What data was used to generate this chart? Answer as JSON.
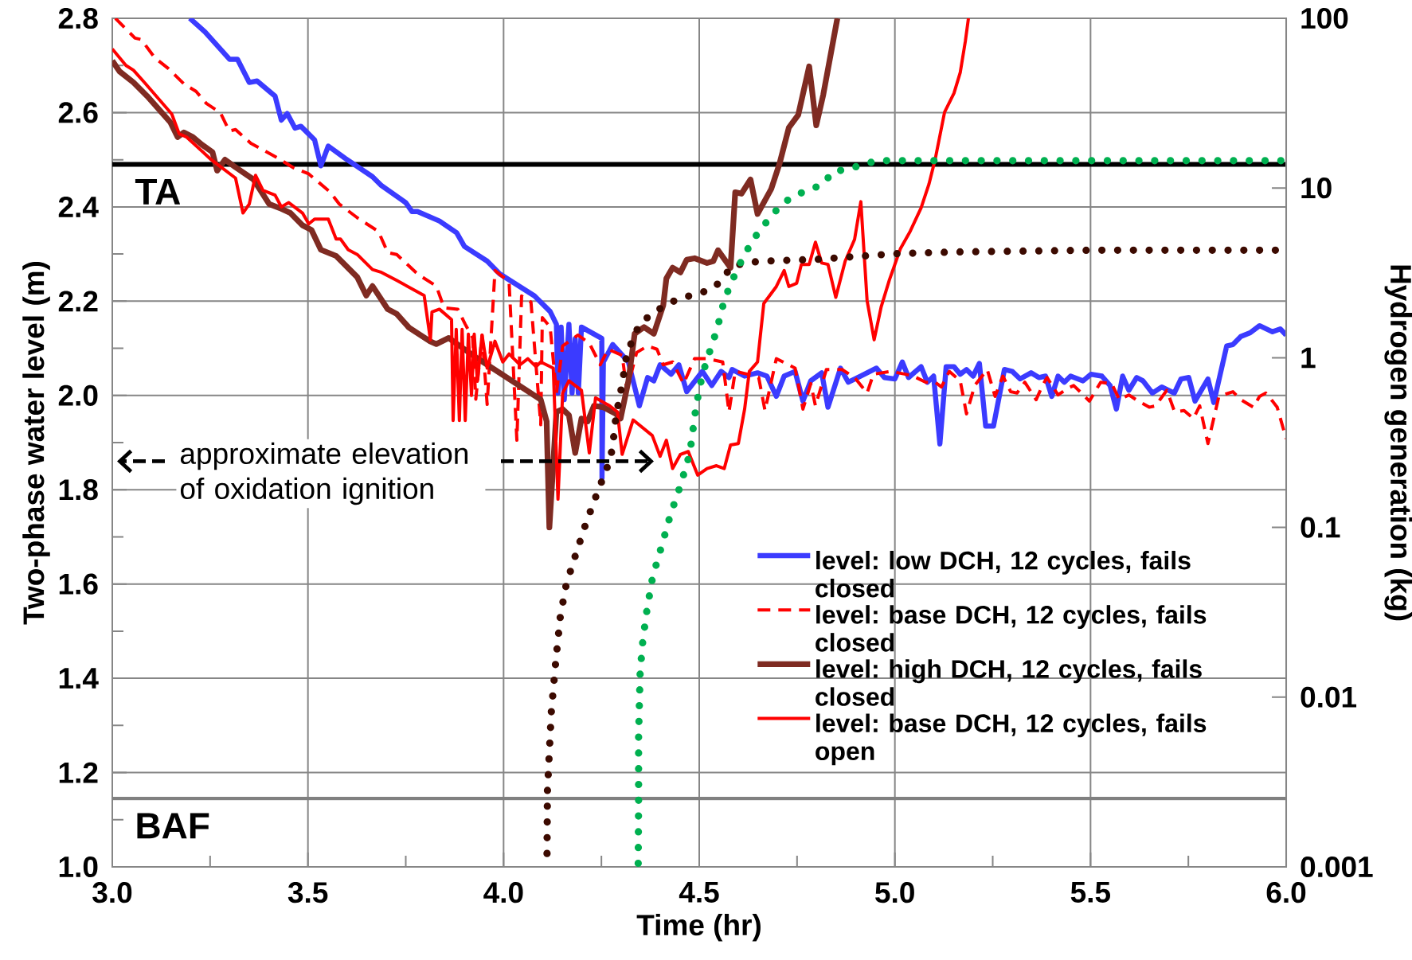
{
  "chart_data": {
    "type": "line",
    "xlabel": "Time (hr)",
    "ylabel": "Two-phase water level (m)",
    "y2label": "Hydrogen generation (kg)",
    "xlim": [
      3,
      6
    ],
    "xticks": [
      {
        "value": 3,
        "label": "3.0"
      },
      {
        "value": 3.5,
        "label": "3.5"
      },
      {
        "value": 4,
        "label": "4.0"
      },
      {
        "value": 4.5,
        "label": "4.5"
      },
      {
        "value": 5,
        "label": "5.0"
      },
      {
        "value": 5.5,
        "label": "5.5"
      },
      {
        "value": 6,
        "label": "6.0"
      }
    ],
    "ylim": [
      1,
      2.8
    ],
    "yticks": [
      {
        "value": 1,
        "label": "1.0"
      },
      {
        "value": 1.2,
        "label": "1.2"
      },
      {
        "value": 1.4,
        "label": "1.4"
      },
      {
        "value": 1.6,
        "label": "1.6"
      },
      {
        "value": 1.8,
        "label": "1.8"
      },
      {
        "value": 2,
        "label": "2.0"
      },
      {
        "value": 2.2,
        "label": "2.2"
      },
      {
        "value": 2.4,
        "label": "2.4"
      },
      {
        "value": 2.6,
        "label": "2.6"
      },
      {
        "value": 2.8,
        "label": "2.8"
      }
    ],
    "y2lim": [
      0.001,
      100
    ],
    "y2ticks": [
      0.001,
      0.01,
      0.1,
      1,
      10,
      100
    ],
    "log": "y2",
    "grid": true,
    "legend": "bottom right",
    "ref_lines": [
      {
        "axis": "y",
        "value": 2.49,
        "label": "TA",
        "color": "#000000"
      },
      {
        "axis": "y",
        "value": 1.145,
        "label": "BAF",
        "color": "#808080"
      }
    ],
    "annotations": [
      "approximate elevation of oxidation ignition"
    ],
    "series": [
      {
        "name": "level: low DCH, 12 cycles, fails closed",
        "color": "#3b3bff",
        "line_style": "solid",
        "x": [
          3.198,
          3.237,
          3.3,
          3.32,
          3.35,
          3.37,
          3.416,
          3.432,
          3.447,
          3.467,
          3.482,
          3.517,
          3.533,
          3.552,
          3.595,
          3.665,
          3.688,
          3.75,
          3.766,
          3.78,
          3.836,
          3.88,
          3.9,
          3.958,
          3.99,
          4.079,
          4.119,
          4.135,
          4.139,
          4.147,
          4.155,
          4.167,
          4.175,
          4.183,
          4.191,
          4.199,
          4.251,
          4.2515,
          4.255,
          4.279,
          4.319,
          4.347,
          4.368,
          4.384,
          4.4,
          4.428,
          4.448,
          4.468,
          4.496,
          4.508,
          4.532,
          4.556,
          4.576,
          4.584,
          4.616,
          4.649,
          4.673,
          4.697,
          4.717,
          4.745,
          4.765,
          4.785,
          4.813,
          4.829,
          4.861,
          4.881,
          4.913,
          4.953,
          4.973,
          5.0,
          5.019,
          5.035,
          5.067,
          5.083,
          5.099,
          5.115,
          5.131,
          5.151,
          5.167,
          5.183,
          5.2,
          5.216,
          5.232,
          5.252,
          5.28,
          5.3,
          5.32,
          5.348,
          5.368,
          5.385,
          5.401,
          5.417,
          5.433,
          5.449,
          5.481,
          5.501,
          5.529,
          5.55,
          5.566,
          5.582,
          5.598,
          5.618,
          5.634,
          5.658,
          5.682,
          5.714,
          5.731,
          5.751,
          5.767,
          5.8,
          5.815,
          5.848,
          5.864,
          5.884,
          5.908,
          5.932,
          5.965,
          5.985,
          6.0
        ],
        "values": [
          2.8,
          2.771,
          2.713,
          2.713,
          2.664,
          2.667,
          2.635,
          2.584,
          2.598,
          2.567,
          2.571,
          2.542,
          2.487,
          2.529,
          2.503,
          2.464,
          2.445,
          2.409,
          2.39,
          2.39,
          2.37,
          2.345,
          2.316,
          2.285,
          2.258,
          2.211,
          2.178,
          2.151,
          2.005,
          2.145,
          1.991,
          2.151,
          2.005,
          2.12,
          2.005,
          2.145,
          2.121,
          1.825,
          2.071,
          2.108,
          2.071,
          1.978,
          2.038,
          2.031,
          2.065,
          2.045,
          2.065,
          2.008,
          2.038,
          2.051,
          2.021,
          2.051,
          2.038,
          2.055,
          2.041,
          2.048,
          2.041,
          1.998,
          2.041,
          2.051,
          1.988,
          2.031,
          2.048,
          1.975,
          2.058,
          2.028,
          2.041,
          2.058,
          2.038,
          2.035,
          2.071,
          2.038,
          2.061,
          2.028,
          2.041,
          1.897,
          2.061,
          2.061,
          2.045,
          2.055,
          2.041,
          2.068,
          1.935,
          1.935,
          2.055,
          2.051,
          2.035,
          2.048,
          2.038,
          2.041,
          1.998,
          2.041,
          2.028,
          2.041,
          2.031,
          2.045,
          2.041,
          2.021,
          1.971,
          2.041,
          2.011,
          2.038,
          2.031,
          2.005,
          2.018,
          2.005,
          2.035,
          2.038,
          1.988,
          2.035,
          1.985,
          2.105,
          2.108,
          2.125,
          2.133,
          2.148,
          2.135,
          2.141,
          2.128
        ]
      },
      {
        "name": "level: base DCH, 12 cycles, fails closed",
        "color": "#ff0000",
        "line_style": "dashed",
        "x": [
          3.008,
          3.058,
          3.074,
          3.109,
          3.144,
          3.183,
          3.214,
          3.241,
          3.276,
          3.299,
          3.315,
          3.354,
          3.424,
          3.463,
          3.502,
          3.556,
          3.58,
          3.626,
          3.68,
          3.704,
          3.727,
          3.781,
          3.828,
          3.848,
          3.883,
          3.902,
          3.921,
          3.929,
          3.945,
          3.958,
          3.978,
          4.014,
          4.034,
          4.046,
          4.07,
          4.095,
          4.099,
          4.119,
          4.135,
          4.151,
          4.19,
          4.219,
          4.247,
          4.267,
          4.303,
          4.315,
          4.34,
          4.368,
          4.392,
          4.408,
          4.432,
          4.46,
          4.488,
          4.52,
          4.56,
          4.576,
          4.592,
          4.624,
          4.652,
          4.668,
          4.697,
          4.745,
          4.765,
          4.785,
          4.797,
          4.825,
          4.865,
          4.897,
          4.929,
          4.945,
          4.99,
          5.027,
          5.047,
          5.079,
          5.103,
          5.119,
          5.139,
          5.167,
          5.183,
          5.204,
          5.236,
          5.256,
          5.276,
          5.296,
          5.312,
          5.332,
          5.361,
          5.377,
          5.389,
          5.417,
          5.441,
          5.457,
          5.477,
          5.497,
          5.526,
          5.554,
          5.574,
          5.598,
          5.622,
          5.65,
          5.666,
          5.695,
          5.715,
          5.739,
          5.763,
          5.779,
          5.8,
          5.828,
          5.864,
          5.884,
          5.916,
          5.932,
          5.948,
          5.965,
          5.977,
          6.0
        ],
        "values": [
          2.8,
          2.758,
          2.755,
          2.716,
          2.693,
          2.661,
          2.645,
          2.619,
          2.6,
          2.561,
          2.564,
          2.535,
          2.503,
          2.483,
          2.47,
          2.432,
          2.406,
          2.377,
          2.348,
          2.303,
          2.299,
          2.257,
          2.232,
          2.186,
          2.183,
          2.151,
          2.122,
          1.992,
          2.128,
          1.981,
          2.265,
          2.241,
          1.905,
          2.211,
          2.198,
          1.938,
          2.165,
          2.145,
          2.005,
          2.105,
          2.128,
          2.111,
          2.065,
          2.098,
          2.085,
          2.011,
          2.091,
          2.105,
          2.098,
          2.065,
          2.071,
          2.025,
          2.078,
          2.078,
          2.071,
          1.965,
          2.051,
          2.045,
          2.038,
          1.968,
          2.078,
          2.058,
          1.971,
          2.025,
          1.978,
          2.055,
          2.055,
          2.038,
          2.005,
          2.045,
          2.051,
          2.045,
          2.041,
          2.028,
          2.028,
          2.018,
          2.051,
          2.031,
          1.961,
          2.021,
          2.055,
          1.998,
          2.041,
          2.008,
          2.005,
          2.028,
          1.991,
          2.021,
          2.038,
          2.001,
          2.015,
          2.021,
          2.005,
          1.988,
          2.028,
          2.025,
          1.991,
          2.001,
          1.988,
          1.975,
          1.978,
          2.011,
          1.965,
          1.968,
          1.951,
          1.978,
          1.898,
          1.998,
          2.008,
          1.991,
          1.975,
          1.998,
          2.005,
          1.988,
          1.975,
          1.908
        ]
      },
      {
        "name": "level: high DCH, 12 cycles, fails closed",
        "color": "#7f2b22",
        "line_style": "solid",
        "x": [
          3.0,
          3.019,
          3.054,
          3.089,
          3.148,
          3.167,
          3.183,
          3.206,
          3.229,
          3.256,
          3.268,
          3.288,
          3.315,
          3.361,
          3.401,
          3.432,
          3.455,
          3.486,
          3.509,
          3.533,
          3.572,
          3.626,
          3.649,
          3.665,
          3.704,
          3.727,
          3.758,
          3.812,
          3.828,
          3.86,
          3.878,
          3.934,
          4.095,
          4.11,
          4.117,
          4.135,
          4.151,
          4.167,
          4.183,
          4.199,
          4.215,
          4.231,
          4.255,
          4.287,
          4.299,
          4.319,
          4.335,
          4.359,
          4.384,
          4.408,
          4.416,
          4.432,
          4.452,
          4.468,
          4.488,
          4.52,
          4.536,
          4.548,
          4.58,
          4.592,
          4.608,
          4.631,
          4.649,
          4.684,
          4.705,
          4.729,
          4.753,
          4.781,
          4.799,
          4.817,
          4.853
        ],
        "values": [
          2.71,
          2.687,
          2.664,
          2.635,
          2.58,
          2.548,
          2.558,
          2.548,
          2.532,
          2.516,
          2.477,
          2.5,
          2.484,
          2.458,
          2.406,
          2.396,
          2.387,
          2.361,
          2.351,
          2.309,
          2.296,
          2.251,
          2.212,
          2.232,
          2.183,
          2.173,
          2.144,
          2.115,
          2.109,
          2.122,
          2.111,
          2.078,
          1.991,
          1.945,
          1.72,
          1.965,
          1.971,
          1.958,
          1.878,
          1.951,
          1.945,
          1.978,
          1.975,
          1.961,
          1.951,
          2.031,
          2.131,
          2.145,
          2.131,
          2.191,
          2.248,
          2.271,
          2.261,
          2.288,
          2.291,
          2.281,
          2.285,
          2.308,
          2.271,
          2.431,
          2.428,
          2.458,
          2.385,
          2.438,
          2.491,
          2.568,
          2.595,
          2.698,
          2.573,
          2.638,
          2.8
        ]
      },
      {
        "name": "level: base DCH, 12 cycles, fails open",
        "color": "#ff0000",
        "line_style": "solid",
        "x": [
          3.0,
          3.035,
          3.054,
          3.082,
          3.152,
          3.171,
          3.19,
          3.253,
          3.315,
          3.334,
          3.35,
          3.366,
          3.385,
          3.416,
          3.432,
          3.451,
          3.486,
          3.502,
          3.517,
          3.552,
          3.572,
          3.583,
          3.603,
          3.626,
          3.665,
          3.688,
          3.727,
          3.797,
          3.813,
          3.817,
          3.836,
          3.867,
          3.871,
          3.879,
          3.887,
          3.894,
          3.902,
          3.91,
          3.918,
          3.925,
          3.933,
          3.945,
          3.958,
          3.978,
          3.998,
          4.014,
          4.042,
          4.062,
          4.083,
          4.095,
          4.127,
          4.139,
          4.151,
          4.167,
          4.183,
          4.199,
          4.219,
          4.235,
          4.271,
          4.291,
          4.303,
          4.331,
          4.38,
          4.4,
          4.416,
          4.432,
          4.452,
          4.472,
          4.496,
          4.52,
          4.544,
          4.564,
          4.58,
          4.6,
          4.616,
          4.628,
          4.649,
          4.665,
          4.697,
          4.717,
          4.729,
          4.749,
          4.761,
          4.781,
          4.797,
          4.813,
          4.829,
          4.849,
          4.873,
          4.897,
          4.913,
          4.929,
          4.947,
          4.965,
          4.986,
          5.014,
          5.039,
          5.067,
          5.087,
          5.103,
          5.127,
          5.151,
          5.167,
          5.18,
          5.188
        ],
        "values": [
          2.735,
          2.7,
          2.69,
          2.664,
          2.597,
          2.555,
          2.548,
          2.5,
          2.461,
          2.387,
          2.406,
          2.467,
          2.435,
          2.425,
          2.4,
          2.409,
          2.387,
          2.364,
          2.374,
          2.374,
          2.332,
          2.332,
          2.309,
          2.299,
          2.267,
          2.261,
          2.244,
          2.212,
          2.118,
          2.177,
          2.183,
          2.161,
          1.947,
          2.14,
          1.947,
          2.14,
          1.947,
          2.13,
          2.0,
          2.13,
          2.03,
          2.128,
          2.058,
          2.115,
          2.071,
          2.088,
          2.065,
          2.078,
          2.061,
          2.071,
          2.058,
          1.78,
          2.005,
          2.031,
          2.021,
          2.011,
          1.878,
          1.995,
          1.978,
          1.965,
          1.875,
          1.948,
          1.915,
          1.871,
          1.905,
          1.845,
          1.875,
          1.881,
          1.831,
          1.845,
          1.851,
          1.845,
          1.895,
          1.898,
          1.971,
          2.051,
          2.071,
          2.195,
          2.231,
          2.265,
          2.231,
          2.238,
          2.278,
          2.278,
          2.325,
          2.281,
          2.278,
          2.208,
          2.285,
          2.331,
          2.411,
          2.201,
          2.118,
          2.188,
          2.245,
          2.311,
          2.348,
          2.398,
          2.448,
          2.501,
          2.601,
          2.641,
          2.685,
          2.751,
          2.8
        ]
      },
      {
        "color": "#3c0a00",
        "line_style": "dotted",
        "axis": "y2",
        "x": [
          4.111,
          4.112,
          4.122,
          4.133,
          4.145,
          4.16,
          4.184,
          4.21,
          4.238,
          4.267,
          4.278,
          4.287,
          4.303,
          4.315,
          4.331,
          4.347,
          4.377,
          4.412,
          4.448,
          4.488,
          4.529,
          4.559,
          4.58,
          4.613,
          4.653,
          4.8,
          5.0,
          5.15,
          5.5,
          6.0
        ],
        "values": [
          0.0012,
          0.0028,
          0.0082,
          0.016,
          0.03,
          0.046,
          0.069,
          0.105,
          0.157,
          0.233,
          0.29,
          0.45,
          0.7,
          1.05,
          1.3,
          1.57,
          1.8,
          2.03,
          2.23,
          2.35,
          2.52,
          2.86,
          3.42,
          3.6,
          3.7,
          3.8,
          4.1,
          4.2,
          4.3,
          4.3
        ]
      },
      {
        "color": "#00b050",
        "line_style": "dotted",
        "axis": "y2",
        "x": [
          4.344,
          4.345,
          4.345,
          4.349,
          4.356,
          4.367,
          4.381,
          4.404,
          4.426,
          4.452,
          4.476,
          4.492,
          4.508,
          4.52,
          4.545,
          4.565,
          4.581,
          4.597,
          4.635,
          4.684,
          4.712,
          4.744,
          4.782,
          4.818,
          4.841,
          4.881,
          4.919,
          4.957,
          6.0
        ],
        "values": [
          0.00105,
          0.0025,
          0.0059,
          0.0141,
          0.0218,
          0.0335,
          0.0512,
          0.0778,
          0.118,
          0.177,
          0.274,
          0.519,
          0.795,
          0.975,
          1.46,
          2.23,
          2.72,
          3.33,
          4.88,
          6.86,
          8.04,
          9.06,
          9.75,
          10.6,
          12.5,
          12.9,
          13.8,
          14.5,
          14.5
        ]
      }
    ]
  }
}
